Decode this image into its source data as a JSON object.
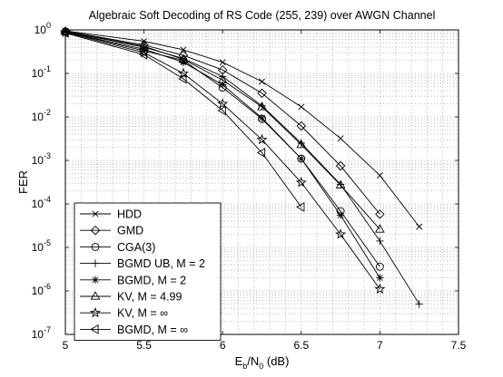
{
  "chart_data": {
    "type": "line",
    "title": "Algebraic Soft Decoding of RS Code (255, 239) over AWGN Channel",
    "xlabel": "E_b/N_0 (dB)",
    "ylabel": "FER",
    "xlim": [
      5,
      7.5
    ],
    "ylim": [
      1e-07,
      1
    ],
    "yscale": "log",
    "grid": true,
    "legend_position": "bottom-left",
    "x_ticks": [
      "5",
      "5.5",
      "6",
      "6.5",
      "7",
      "7.5"
    ],
    "y_ticks": [
      {
        "base": "10",
        "exp": "0"
      },
      {
        "base": "10",
        "exp": "-1"
      },
      {
        "base": "10",
        "exp": "-2"
      },
      {
        "base": "10",
        "exp": "-3"
      },
      {
        "base": "10",
        "exp": "-4"
      },
      {
        "base": "10",
        "exp": "-5"
      },
      {
        "base": "10",
        "exp": "-6"
      },
      {
        "base": "10",
        "exp": "-7"
      }
    ],
    "series": [
      {
        "name": "HDD",
        "marker": "x",
        "x": [
          5,
          5.5,
          5.75,
          6,
          6.25,
          6.5,
          6.75,
          7,
          7.25
        ],
        "y": [
          0.95,
          0.55,
          0.35,
          0.18,
          0.065,
          0.017,
          0.0032,
          0.00045,
          3e-05
        ]
      },
      {
        "name": "GMD",
        "marker": "diamond",
        "x": [
          5,
          5.5,
          5.75,
          6,
          6.25,
          6.5,
          6.75,
          7
        ],
        "y": [
          0.93,
          0.45,
          0.26,
          0.12,
          0.035,
          0.0062,
          0.00075,
          5.8e-05
        ]
      },
      {
        "name": "CGA(3)",
        "marker": "circle",
        "x": [
          5,
          5.5,
          5.75,
          6,
          6.25,
          6.5,
          6.75,
          7
        ],
        "y": [
          0.9,
          0.33,
          0.2,
          0.047,
          0.009,
          0.0011,
          6.8e-05,
          3.6e-06
        ]
      },
      {
        "name": "BGMD UB, M = 2",
        "marker": "plus",
        "x": [
          5,
          5.5,
          5.75,
          6,
          6.25,
          6.5,
          6.75,
          7
        ],
        "y": [
          0.92,
          0.4,
          0.22,
          0.085,
          0.018,
          0.0025,
          0.00028,
          1.4e-05
        ]
      },
      {
        "name": "BGMD, M = 2",
        "marker": "asterisk",
        "x": [
          5,
          5.5,
          5.75,
          6,
          6.25,
          6.5,
          6.75,
          7
        ],
        "y": [
          0.9,
          0.36,
          0.18,
          0.055,
          0.0095,
          0.0011,
          5.5e-05,
          2e-06
        ]
      },
      {
        "name": "KV, M = 4.99",
        "marker": "triangle-up",
        "x": [
          5,
          5.5,
          5.75,
          6,
          6.25,
          6.5,
          6.75,
          7
        ],
        "y": [
          0.92,
          0.42,
          0.21,
          0.07,
          0.017,
          0.0023,
          0.00027,
          2.6e-05
        ]
      },
      {
        "name": "KV, M = ∞",
        "marker": "star",
        "x": [
          5,
          5.5,
          5.75,
          6,
          6.25,
          6.5,
          6.75,
          7
        ],
        "y": [
          0.88,
          0.3,
          0.1,
          0.02,
          0.003,
          0.00031,
          2e-05,
          1.1e-06
        ]
      },
      {
        "name": "BGMD, M = ∞",
        "marker": "triangle-left",
        "x": [
          5,
          5.5,
          5.75,
          6,
          6.25,
          6.5
        ],
        "y": [
          0.85,
          0.27,
          0.075,
          0.014,
          0.0015,
          8.5e-05
        ]
      }
    ],
    "extra_points": [
      {
        "series": "BGMD UB, M = 2",
        "x": 7.25,
        "y": 5e-07
      }
    ]
  }
}
